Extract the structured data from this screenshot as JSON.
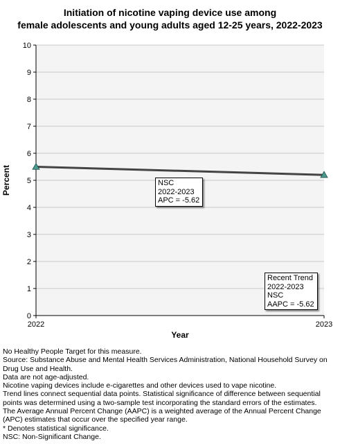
{
  "chart_data": {
    "type": "line",
    "title_lines": [
      "Initiation of nicotine vaping device use among",
      "female adolescents and young adults aged 12-25 years, 2022-2023"
    ],
    "xlabel": "Year",
    "ylabel": "Percent",
    "x_ticks": [
      "2022",
      "2023"
    ],
    "y_ticks": [
      "0",
      "1",
      "2",
      "3",
      "4",
      "5",
      "6",
      "7",
      "8",
      "9",
      "10"
    ],
    "ylim": [
      0,
      10
    ],
    "grid": true,
    "series": [
      {
        "points": [
          {
            "x": 2022,
            "y": 5.5
          },
          {
            "x": 2023,
            "y": 5.2
          }
        ],
        "line_color": "#444444",
        "marker_color": "#4a9a8f",
        "marker": "triangle"
      }
    ],
    "annotations": [
      {
        "lines": [
          "NSC",
          "2022-2023",
          "APC = -5.62"
        ]
      },
      {
        "lines": [
          "Recent Trend",
          "2022-2023",
          "NSC",
          "AAPC = -5.62"
        ]
      }
    ]
  },
  "footnotes": [
    "No Healthy People Target for this measure.",
    "Source: Substance Abuse and Mental Health Services Administration, National Household Survey on Drug Use and Health.",
    "Data are not age-adjusted.",
    "Nicotine vaping devices include e-cigarettes and other devices used to vape nicotine.",
    "Trend lines connect sequential data points. Statistical significance of difference between sequential points was determined using a two-sample test incorporating the standard errors of the estimates.",
    "The Average Annual Percent Change (AAPC) is a weighted average of the Annual Percent Change (APC) estimates that occur over the specified year range.",
    "* Denotes statistical significance.",
    "NSC: Non-Significant Change."
  ]
}
